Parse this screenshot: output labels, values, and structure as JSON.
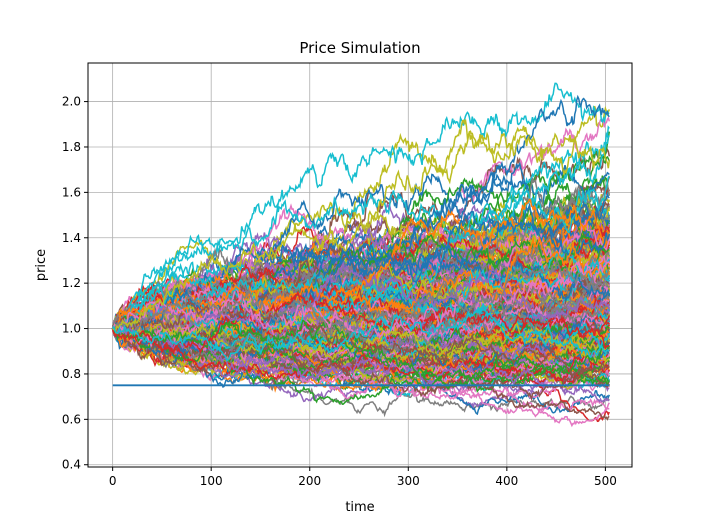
{
  "chart_data": {
    "type": "line",
    "title": "Price Simulation",
    "xlabel": "time",
    "ylabel": "price",
    "xlim": [
      -25,
      527
    ],
    "ylim": [
      0.39,
      2.17
    ],
    "xticks": [
      "0",
      "100",
      "200",
      "300",
      "400",
      "500"
    ],
    "yticks": [
      "0.4",
      "0.6",
      "0.8",
      "1.0",
      "1.2",
      "1.4",
      "1.6",
      "1.8",
      "2.0"
    ],
    "grid": true,
    "legend": "none",
    "simulated_paths": {
      "start_value": 1.0,
      "time_range": [
        0,
        504
      ],
      "max_value_reached": 2.08,
      "min_value_reached": 0.47,
      "colors": [
        "#1f77b4",
        "#ff7f0e",
        "#2ca02c",
        "#d62728",
        "#9467bd",
        "#8c564b",
        "#e377c2",
        "#7f7f7f",
        "#bcbd22",
        "#17becf"
      ]
    },
    "horizontal_line": {
      "y": 0.75,
      "x_range": [
        0,
        504
      ],
      "color": "#1f77b4"
    }
  }
}
